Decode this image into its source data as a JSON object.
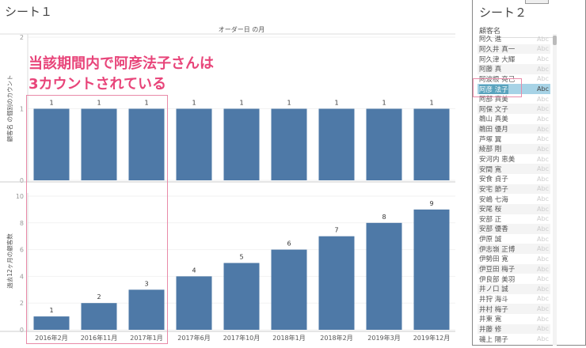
{
  "sheet1": {
    "title": "シート１",
    "annotation_line1": "当該期間内で阿彦法子さんは",
    "annotation_line2": "3カウントされている"
  },
  "chart_data": [
    {
      "type": "bar",
      "title": "オーダー日 の月",
      "ylabel": "顧客名 の個別のカウント",
      "ylim": [
        0,
        2
      ],
      "yticks": [
        0,
        1,
        2
      ],
      "categories": [
        "2016年2月",
        "2016年11月",
        "2017年1月",
        "2017年6月",
        "2017年10月",
        "2018年1月",
        "2018年2月",
        "2019年3月",
        "2019年12月"
      ],
      "values": [
        1,
        1,
        1,
        1,
        1,
        1,
        1,
        1,
        1
      ],
      "color": "#4e79a7"
    },
    {
      "type": "bar",
      "ylabel": "過去12ヶ月の顧客数",
      "ylim": [
        0,
        10
      ],
      "yticks": [
        0,
        2,
        4,
        6,
        8,
        10
      ],
      "categories": [
        "2016年2月",
        "2016年11月",
        "2017年1月",
        "2017年6月",
        "2017年10月",
        "2018年1月",
        "2018年2月",
        "2019年3月",
        "2019年12月"
      ],
      "values": [
        1,
        2,
        3,
        4,
        5,
        6,
        7,
        8,
        9
      ],
      "color": "#4e79a7"
    }
  ],
  "sheet2": {
    "title": "シート２",
    "header": "顧客名",
    "abc": "Abc",
    "selected": "阿彦 法子",
    "names": [
      "阿久 進",
      "阿久井 真一",
      "阿久津 大輝",
      "阿藤 真",
      "阿波根 亮己",
      "阿彦 法子",
      "阿部 真美",
      "阿保 文子",
      "鵜山 真美",
      "鵜田 優月",
      "芦塚 翼",
      "綾部 剛",
      "安河内 恵美",
      "安間 寛",
      "安食 貞子",
      "安宅 節子",
      "安嶋 七海",
      "安尾 桜",
      "安部 正",
      "安部 優香",
      "伊原 誠",
      "伊志嶺 正博",
      "伊勢田 寛",
      "伊豆田 梅子",
      "伊良部 美羽",
      "井ノ口 誠",
      "井狩 海斗",
      "井村 梅子",
      "井東 寛",
      "井藤 修",
      "磯上 陽子"
    ]
  },
  "colors": {
    "bar": "#4e79a7",
    "highlight": "#e8457a",
    "selected_row": "#a7d3e6"
  }
}
